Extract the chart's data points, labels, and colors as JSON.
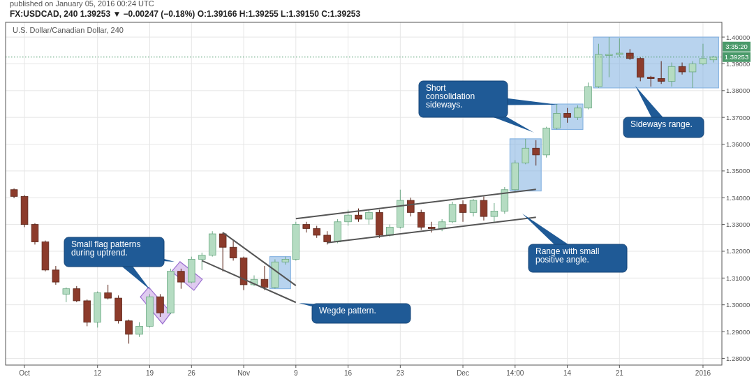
{
  "chart_data": {
    "type": "candlestick",
    "title": "FX:USDCAD, 240 1.39253 ▼ −0.00247 (−0.18%) O:1.39166 H:1.39255 L:1.39150 C:1.39253",
    "subtitle": "U.S. Dollar/Canadian Dollar, 240",
    "categories": [
      null,
      "Oct",
      null,
      null,
      null,
      null,
      null,
      null,
      "12",
      null,
      null,
      null,
      null,
      "19",
      null,
      null,
      null,
      "26",
      null,
      null,
      null,
      null,
      "Nov",
      null,
      null,
      null,
      null,
      "9",
      null,
      null,
      null,
      null,
      "16",
      null,
      null,
      null,
      null,
      "23",
      null,
      null,
      null,
      null,
      null,
      "Dec",
      null,
      null,
      null,
      null,
      "14:00",
      null,
      null,
      null,
      null,
      "14",
      null,
      null,
      null,
      null,
      "21",
      null,
      null,
      null,
      null,
      null,
      null,
      null,
      "2016",
      null
    ],
    "ohlc": [
      [
        1.343,
        1.3435,
        1.3398,
        1.3405
      ],
      [
        1.3405,
        1.341,
        1.329,
        1.33
      ],
      [
        1.33,
        1.3305,
        1.3225,
        1.3235
      ],
      [
        1.3235,
        1.324,
        1.3125,
        1.313
      ],
      [
        1.313,
        1.3145,
        1.3075,
        1.3085
      ],
      [
        1.304,
        1.3065,
        1.301,
        1.306
      ],
      [
        1.306,
        1.307,
        1.301,
        1.3015
      ],
      [
        1.3015,
        1.302,
        1.292,
        1.2935
      ],
      [
        1.2935,
        1.305,
        1.2915,
        1.3045
      ],
      [
        1.3045,
        1.3075,
        1.302,
        1.3025
      ],
      [
        1.3025,
        1.3035,
        1.293,
        1.294
      ],
      [
        1.294,
        1.2945,
        1.2855,
        1.289
      ],
      [
        1.289,
        1.2935,
        1.288,
        1.292
      ],
      [
        1.292,
        1.304,
        1.2915,
        1.303
      ],
      [
        1.303,
        1.304,
        1.2955,
        1.297
      ],
      [
        1.297,
        1.3135,
        1.2965,
        1.3125
      ],
      [
        1.3125,
        1.3135,
        1.306,
        1.3085
      ],
      [
        1.3085,
        1.318,
        1.308,
        1.317
      ],
      [
        1.317,
        1.3195,
        1.313,
        1.3185
      ],
      [
        1.3185,
        1.3275,
        1.318,
        1.3265
      ],
      [
        1.3265,
        1.327,
        1.3125,
        1.3215
      ],
      [
        1.3215,
        1.324,
        1.3165,
        1.3175
      ],
      [
        1.3175,
        1.318,
        1.3055,
        1.3075
      ],
      [
        1.3075,
        1.311,
        1.307,
        1.3095
      ],
      [
        1.3095,
        1.3145,
        1.3055,
        1.3065
      ],
      [
        1.3065,
        1.317,
        1.306,
        1.316
      ],
      [
        1.316,
        1.318,
        1.315,
        1.317
      ],
      [
        1.317,
        1.331,
        1.3165,
        1.33
      ],
      [
        1.33,
        1.331,
        1.327,
        1.3285
      ],
      [
        1.3285,
        1.3295,
        1.325,
        1.326
      ],
      [
        1.326,
        1.3275,
        1.3225,
        1.3235
      ],
      [
        1.3235,
        1.332,
        1.323,
        1.331
      ],
      [
        1.331,
        1.3355,
        1.3295,
        1.3335
      ],
      [
        1.3335,
        1.336,
        1.331,
        1.332
      ],
      [
        1.332,
        1.3355,
        1.33,
        1.3345
      ],
      [
        1.3345,
        1.3355,
        1.325,
        1.326
      ],
      [
        1.326,
        1.33,
        1.3255,
        1.329
      ],
      [
        1.329,
        1.343,
        1.3285,
        1.339
      ],
      [
        1.339,
        1.34,
        1.333,
        1.3345
      ],
      [
        1.3345,
        1.3355,
        1.328,
        1.329
      ],
      [
        1.329,
        1.331,
        1.327,
        1.3285
      ],
      [
        1.3285,
        1.332,
        1.3275,
        1.331
      ],
      [
        1.331,
        1.3385,
        1.3305,
        1.3375
      ],
      [
        1.3375,
        1.339,
        1.331,
        1.3345
      ],
      [
        1.3345,
        1.3395,
        1.333,
        1.339
      ],
      [
        1.339,
        1.3405,
        1.3315,
        1.333
      ],
      [
        1.333,
        1.338,
        1.331,
        1.335
      ],
      [
        1.335,
        1.344,
        1.334,
        1.343
      ],
      [
        1.343,
        1.354,
        1.3425,
        1.353
      ],
      [
        1.353,
        1.362,
        1.3525,
        1.3585
      ],
      [
        1.3585,
        1.3615,
        1.352,
        1.356
      ],
      [
        1.356,
        1.3665,
        1.355,
        1.366
      ],
      [
        1.366,
        1.375,
        1.3655,
        1.3715
      ],
      [
        1.3715,
        1.3735,
        1.368,
        1.37
      ],
      [
        1.37,
        1.3745,
        1.369,
        1.3735
      ],
      [
        1.3735,
        1.383,
        1.373,
        1.3815
      ],
      [
        1.3815,
        1.3975,
        1.381,
        1.3935
      ],
      [
        1.3935,
        1.4,
        1.385,
        1.3935
      ],
      [
        1.3935,
        1.3995,
        1.3925,
        1.394
      ],
      [
        1.394,
        1.3955,
        1.3915,
        1.392
      ],
      [
        1.392,
        1.3925,
        1.3835,
        1.385
      ],
      [
        1.385,
        1.3855,
        1.3815,
        1.3845
      ],
      [
        1.3845,
        1.391,
        1.3825,
        1.3835
      ],
      [
        1.3835,
        1.3905,
        1.3815,
        1.389
      ],
      [
        1.389,
        1.3905,
        1.386,
        1.387
      ],
      [
        1.387,
        1.391,
        1.381,
        1.39
      ],
      [
        1.39,
        1.3975,
        1.3895,
        1.392
      ],
      [
        1.3915,
        1.393,
        1.3905,
        1.39253
      ]
    ],
    "series": [
      {
        "type": "line",
        "color": "#555555",
        "values": [
          null,
          null,
          null,
          null,
          null,
          null,
          null,
          null,
          null,
          null,
          null,
          null,
          null,
          null,
          null,
          null,
          null,
          null,
          null,
          null,
          1.327,
          null,
          null,
          null,
          null,
          null,
          null,
          1.3072,
          null,
          null,
          null,
          null,
          null,
          null,
          null,
          null,
          null,
          null,
          null,
          null,
          null,
          null,
          null,
          null,
          null,
          null,
          null,
          null,
          null,
          null,
          null,
          null,
          null,
          null,
          null,
          null,
          null,
          null,
          null,
          null,
          null,
          null,
          null,
          null,
          null,
          null,
          null,
          null
        ]
      },
      {
        "type": "line",
        "color": "#555555",
        "values": [
          null,
          null,
          null,
          null,
          null,
          null,
          null,
          null,
          null,
          null,
          null,
          null,
          null,
          null,
          null,
          null,
          null,
          null,
          1.3165,
          null,
          null,
          null,
          null,
          null,
          null,
          null,
          null,
          1.3009,
          null,
          null,
          null,
          null,
          null,
          null,
          null,
          null,
          null,
          null,
          null,
          null,
          null,
          null,
          null,
          null,
          null,
          null,
          null,
          null,
          null,
          null,
          null,
          null,
          null,
          null,
          null,
          null,
          null,
          null,
          null,
          null,
          null,
          null,
          null,
          null,
          null,
          null,
          null,
          null
        ]
      },
      {
        "type": "line",
        "color": "#555555",
        "values": [
          null,
          null,
          null,
          null,
          null,
          null,
          null,
          null,
          null,
          null,
          null,
          null,
          null,
          null,
          null,
          null,
          null,
          null,
          null,
          null,
          null,
          null,
          null,
          null,
          null,
          null,
          null,
          1.3322,
          null,
          null,
          null,
          null,
          null,
          null,
          null,
          null,
          null,
          null,
          null,
          null,
          null,
          null,
          null,
          null,
          null,
          null,
          null,
          null,
          null,
          null,
          1.3431,
          null,
          null,
          null,
          null,
          null,
          null,
          null,
          null,
          null,
          null,
          null,
          null,
          null,
          null,
          null,
          null,
          null
        ]
      },
      {
        "type": "line",
        "color": "#555555",
        "values": [
          null,
          null,
          null,
          null,
          null,
          null,
          null,
          null,
          null,
          null,
          null,
          null,
          null,
          null,
          null,
          null,
          null,
          null,
          null,
          null,
          null,
          null,
          null,
          null,
          null,
          null,
          null,
          null,
          null,
          null,
          1.3232,
          null,
          null,
          null,
          null,
          null,
          null,
          null,
          null,
          null,
          null,
          null,
          null,
          null,
          null,
          null,
          null,
          null,
          null,
          null,
          1.3327,
          null,
          null,
          null,
          null,
          null,
          null,
          null,
          null,
          null,
          null,
          null,
          null,
          null,
          null,
          null,
          null,
          null
        ]
      }
    ],
    "ylim": [
      1.2775,
      1.4055
    ],
    "yticks": [
      {
        "value": 1.28,
        "label": "1.28000"
      },
      {
        "value": 1.29,
        "label": "1.29000"
      },
      {
        "value": 1.3,
        "label": "1.30000"
      },
      {
        "value": 1.31,
        "label": "1.31000"
      },
      {
        "value": 1.32,
        "label": "1.32000"
      },
      {
        "value": 1.33,
        "label": "1.33000"
      },
      {
        "value": 1.34,
        "label": "1.34000"
      },
      {
        "value": 1.35,
        "label": "1.35000"
      },
      {
        "value": 1.36,
        "label": "1.36000"
      },
      {
        "value": 1.37,
        "label": "1.37000"
      },
      {
        "value": 1.38,
        "label": "1.38000"
      },
      {
        "value": 1.39,
        "label": "1.39000"
      },
      {
        "value": 1.4,
        "label": "1.40000"
      }
    ],
    "grid": true,
    "ref_lines": [
      {
        "axis": "y",
        "value": 1.39253,
        "label": "1.39253",
        "color": "#4a9a6a",
        "line_style": "dotted"
      }
    ],
    "annotations": [
      "published on January 05, 2016 00:24 UTC",
      "3:35:20",
      "Small flag patterns\nduring uptrend.",
      "Wegde pattern.",
      "Range with small\npositive angle.",
      "Short\nconsolidation\nsideways.",
      "Sideways range."
    ]
  }
}
